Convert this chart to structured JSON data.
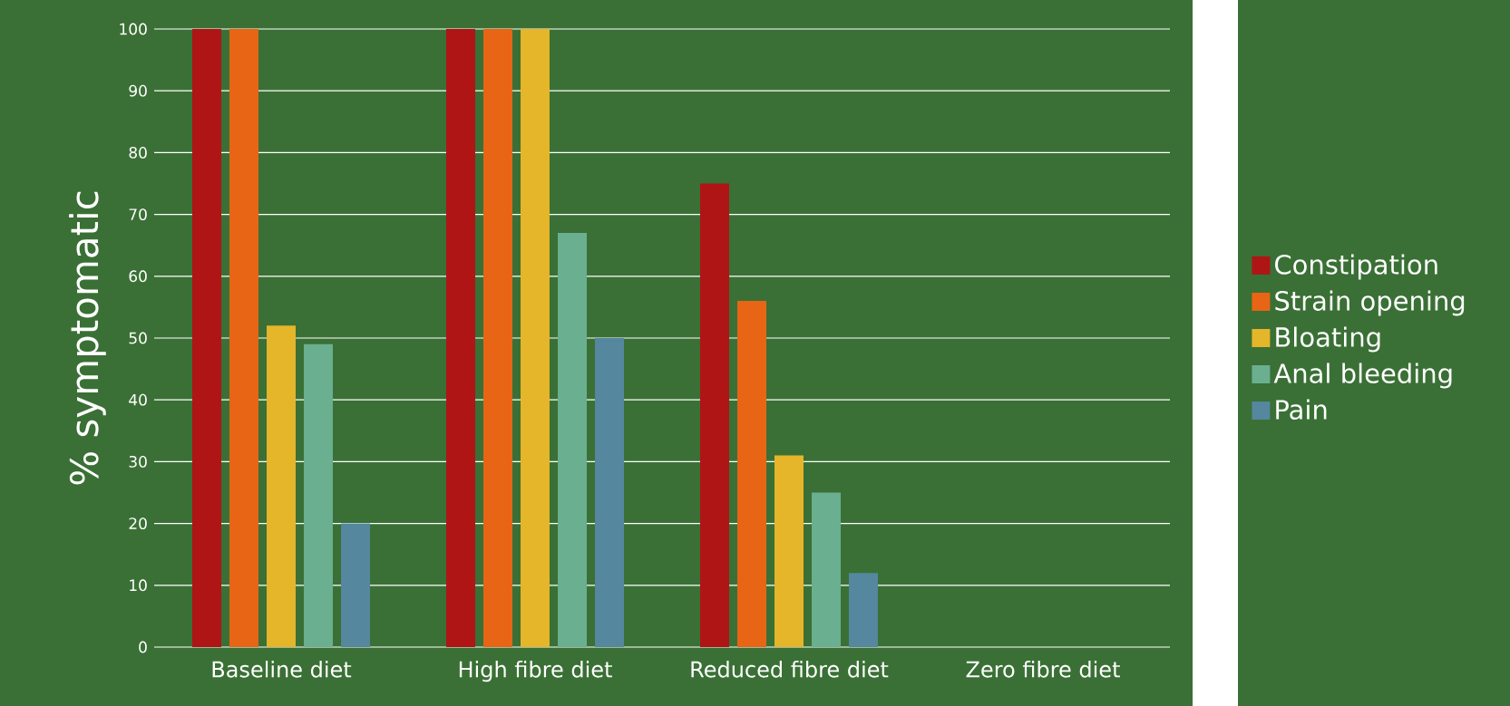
{
  "chart_data": {
    "type": "bar",
    "ylabel": "% symptomatic",
    "categories": [
      "Baseline diet",
      "High fibre diet",
      "Reduced fibre diet",
      "Zero fibre diet"
    ],
    "series": [
      {
        "name": "Constipation",
        "color": "#b01515",
        "values": [
          100,
          100,
          75,
          0
        ]
      },
      {
        "name": "Strain opening",
        "color": "#e86515",
        "values": [
          100,
          100,
          56,
          0
        ]
      },
      {
        "name": "Bloating",
        "color": "#e5b52a",
        "values": [
          52,
          100,
          31,
          0
        ]
      },
      {
        "name": "Anal bleeding",
        "color": "#6aaf90",
        "values": [
          49,
          67,
          25,
          0
        ]
      },
      {
        "name": "Pain",
        "color": "#55879e",
        "values": [
          20,
          50,
          12,
          0
        ]
      }
    ],
    "ylim": [
      0,
      100
    ],
    "yticks": [
      0,
      10,
      20,
      30,
      40,
      50,
      60,
      70,
      80,
      90,
      100
    ],
    "grid": "y",
    "legend": "right"
  }
}
